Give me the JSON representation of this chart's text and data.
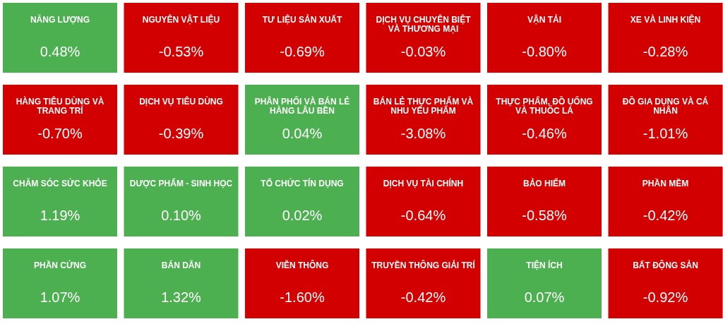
{
  "chart_data": {
    "type": "other",
    "categories": [
      "NĂNG LƯỢNG",
      "NGUYÊN VẬT LIỆU",
      "TƯ LIỆU SẢN XUẤT",
      "DỊCH VỤ CHUYÊN BIỆT VÀ THƯƠNG MẠI",
      "VẬN TẢI",
      "XE VÀ LINH KIỆN",
      "HÀNG TIÊU DÙNG VÀ TRANG TRÍ",
      "DỊCH VỤ TIÊU DÙNG",
      "PHÂN PHỐI VÀ BÁN LẺ HÀNG LÂU BỀN",
      "BÁN LẺ THỰC PHẨM VÀ NHU YẾU PHẨM",
      "THỰC PHẨM, ĐỒ UỐNG VÀ THUỐC LÁ",
      "ĐỒ GIA DỤNG VÀ CÁ NHÂN",
      "CHĂM SÓC SỨC KHỎE",
      "DƯỢC PHẨM - SINH HỌC",
      "TỔ CHỨC TÍN DỤNG",
      "DỊCH VỤ TÀI CHÍNH",
      "BẢO HIỂM",
      "PHẦN MỀM",
      "PHẦN CỨNG",
      "BÁN DẪN",
      "VIỄN THÔNG",
      "TRUYỀN THÔNG GIẢI TRÍ",
      "TIỆN ÍCH",
      "BẤT ĐỘNG SẢN"
    ],
    "values": [
      0.48,
      -0.53,
      -0.69,
      -0.03,
      -0.8,
      -0.28,
      -0.7,
      -0.39,
      0.04,
      -3.08,
      -0.46,
      -1.01,
      1.19,
      0.1,
      0.02,
      -0.64,
      -0.58,
      -0.42,
      1.07,
      1.32,
      -1.6,
      -0.42,
      0.07,
      -0.92
    ],
    "value_labels": [
      "0.48%",
      "-0.53%",
      "-0.69%",
      "-0.03%",
      "-0.80%",
      "-0.28%",
      "-0.70%",
      "-0.39%",
      "0.04%",
      "-3.08%",
      "-0.46%",
      "-1.01%",
      "1.19%",
      "0.10%",
      "0.02%",
      "-0.64%",
      "-0.58%",
      "-0.42%",
      "1.07%",
      "1.32%",
      "-1.60%",
      "-0.42%",
      "0.07%",
      "-0.92%"
    ],
    "colors": [
      "#4caf50",
      "#d20000",
      "#d20000",
      "#d20000",
      "#d20000",
      "#d20000",
      "#d20000",
      "#d20000",
      "#4caf50",
      "#d20000",
      "#d20000",
      "#d20000",
      "#4caf50",
      "#4caf50",
      "#4caf50",
      "#d20000",
      "#d20000",
      "#d20000",
      "#4caf50",
      "#4caf50",
      "#d20000",
      "#d20000",
      "#4caf50",
      "#d20000"
    ]
  }
}
